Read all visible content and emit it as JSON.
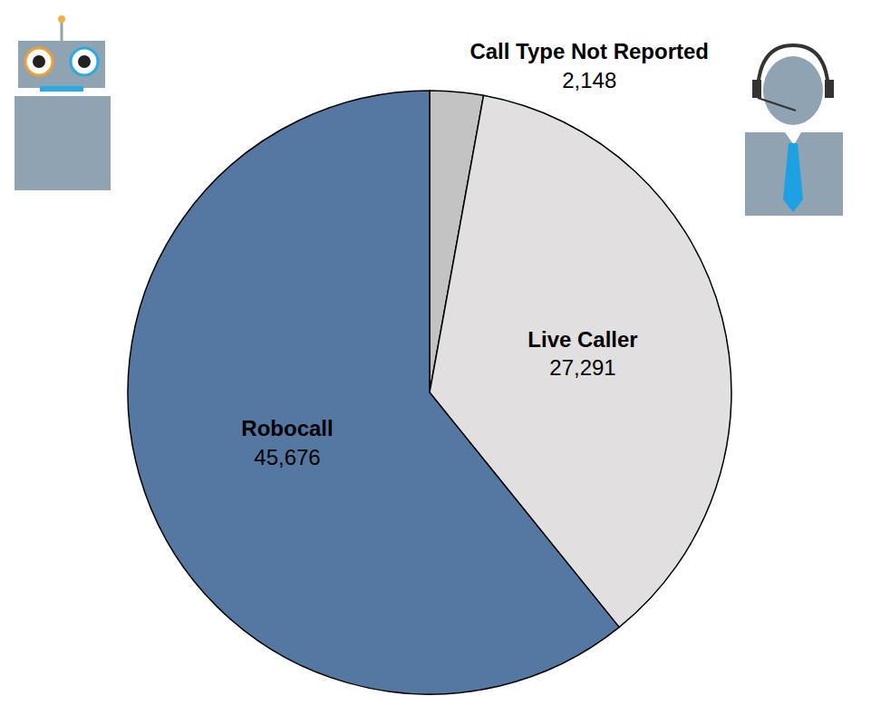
{
  "chart_data": {
    "type": "pie",
    "categories": [
      "Call Type Not Reported",
      "Live Caller",
      "Robocall"
    ],
    "values": [
      2148,
      27291,
      45676
    ],
    "value_labels": [
      "2,148",
      "27,291",
      "45,676"
    ],
    "colors": [
      "#c3c3c3",
      "#e1dfe0",
      "#5578a3"
    ],
    "data_labels": true
  }
}
